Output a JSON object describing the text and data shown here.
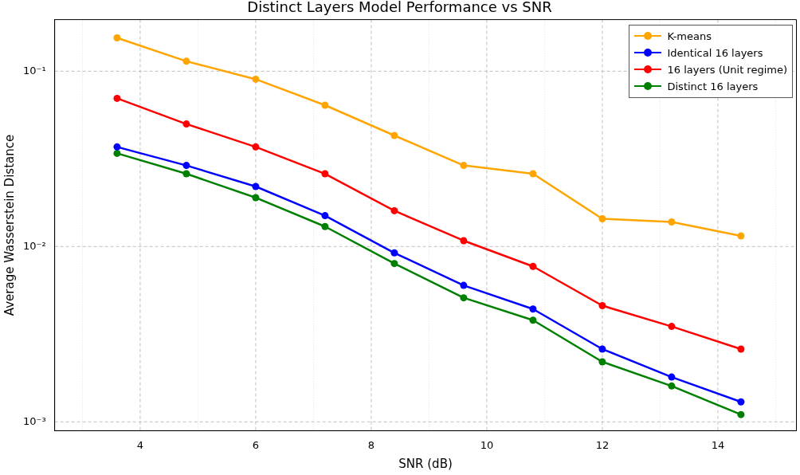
{
  "chart_data": {
    "type": "line",
    "title": "Distinct Layers Model Performance vs SNR",
    "xlabel": "SNR (dB)",
    "ylabel": "Average Wasserstein Distance",
    "x": [
      3.6,
      4.8,
      6.0,
      7.2,
      8.4,
      9.6,
      10.8,
      12.0,
      13.2,
      14.4
    ],
    "series": [
      {
        "name": "K-means",
        "color": "#ffa500",
        "values": [
          0.155,
          0.114,
          0.09,
          0.064,
          0.043,
          0.029,
          0.026,
          0.0144,
          0.0138,
          0.0115
        ]
      },
      {
        "name": "Identical 16 layers",
        "color": "#0000ff",
        "values": [
          0.037,
          0.029,
          0.022,
          0.015,
          0.0092,
          0.006,
          0.0044,
          0.0026,
          0.0018,
          0.0013
        ]
      },
      {
        "name": "16 layers (Unit regime)",
        "color": "#ff0000",
        "values": [
          0.07,
          0.05,
          0.037,
          0.026,
          0.016,
          0.0108,
          0.0077,
          0.0046,
          0.0035,
          0.0026
        ]
      },
      {
        "name": "Distinct 16 layers",
        "color": "#008000",
        "values": [
          0.034,
          0.026,
          0.019,
          0.013,
          0.008,
          0.0051,
          0.0038,
          0.0022,
          0.0016,
          0.0011
        ]
      }
    ],
    "xlim": [
      2.52,
      15.36
    ],
    "xticks": [
      {
        "value": 3,
        "label": null
      },
      4,
      {
        "value": 5,
        "label": null
      },
      6,
      {
        "value": 7,
        "label": null
      },
      8,
      {
        "value": 9,
        "label": null
      },
      10,
      {
        "value": 11,
        "label": null
      },
      12,
      {
        "value": 13,
        "label": null
      },
      14,
      {
        "value": 15,
        "label": null
      }
    ],
    "ylim": [
      0.00089,
      0.197
    ],
    "yticks": [
      {
        "value": 0.001,
        "label": "10⁻³"
      },
      {
        "value": 0.01,
        "label": "10⁻²"
      },
      {
        "value": 0.1,
        "label": "10⁻¹"
      }
    ],
    "log": "y",
    "grid": true,
    "legend": "top right",
    "marker": "circle",
    "line_style": "solid"
  }
}
